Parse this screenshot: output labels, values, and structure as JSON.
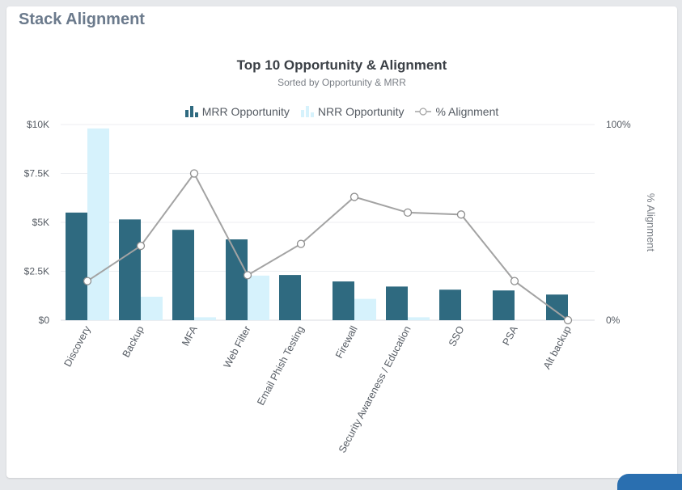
{
  "card": {
    "title": "Stack Alignment"
  },
  "chart_data": {
    "type": "bar",
    "title": "Top 10 Opportunity & Alignment",
    "subtitle": "Sorted by Opportunity & MRR",
    "categories": [
      "Discovery",
      "Backup",
      "MFA",
      "Web Filter",
      "Email Phish Testing",
      "Firewall",
      "Security Awareness / Education",
      "SSO",
      "PSA",
      "Alt backup"
    ],
    "series": [
      {
        "name": "MRR Opportunity",
        "kind": "bar",
        "axis": "left",
        "color": "#2f6a80",
        "values": [
          5500,
          5150,
          4620,
          4130,
          2310,
          1980,
          1720,
          1560,
          1520,
          1310
        ]
      },
      {
        "name": "NRR Opportunity",
        "kind": "bar",
        "axis": "left",
        "color": "#d6f2fc",
        "values": [
          9800,
          1200,
          150,
          2280,
          0,
          1090,
          150,
          0,
          0,
          0
        ]
      },
      {
        "name": "% Alignment",
        "kind": "line",
        "axis": "right",
        "color": "#a3a3a3",
        "values": [
          20,
          38,
          75,
          23,
          39,
          63,
          55,
          54,
          20,
          0
        ]
      }
    ],
    "y_left": {
      "ticks": [
        "$0",
        "$2.5K",
        "$5K",
        "$7.5K",
        "$10K"
      ],
      "min": 0,
      "max": 10000
    },
    "y_right": {
      "label": "% Alignment",
      "ticks": [
        "0%",
        "100%"
      ],
      "min": 0,
      "max": 100
    },
    "grid": true,
    "legend": "top-center"
  }
}
